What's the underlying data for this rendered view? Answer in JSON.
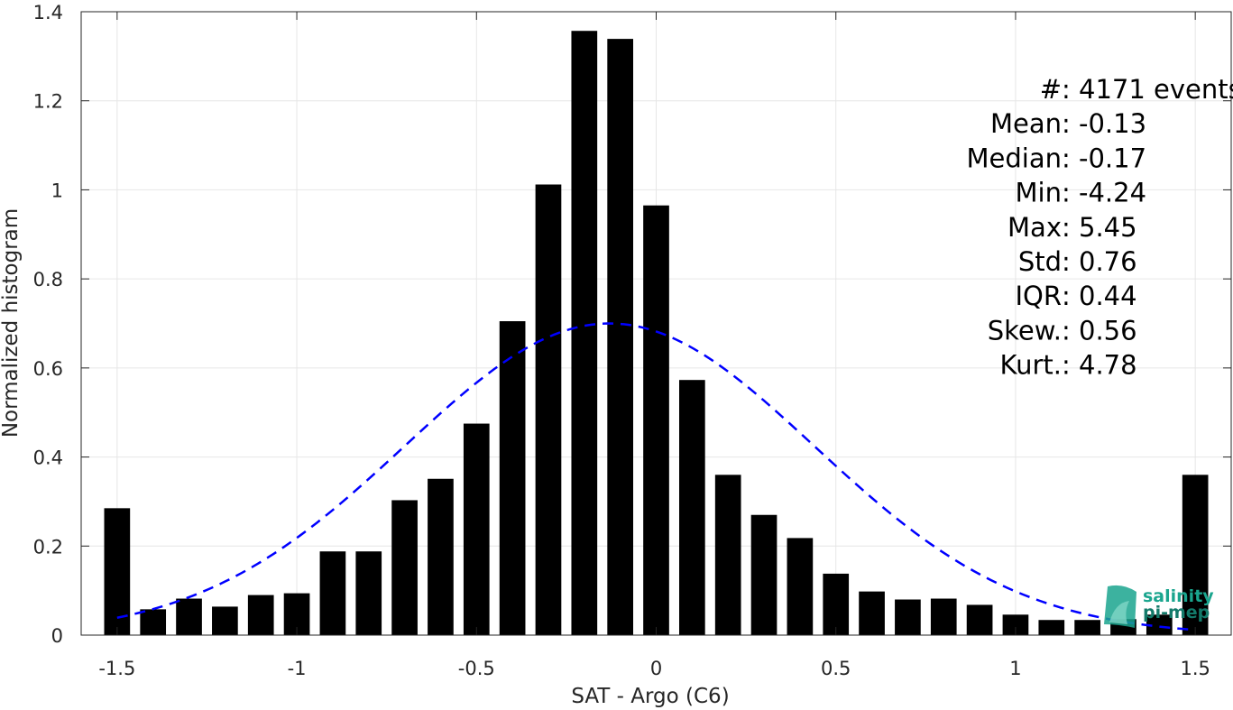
{
  "chart_data": {
    "type": "bar",
    "title": "",
    "xlabel": "SAT - Argo (C6)",
    "ylabel": "Normalized histogram",
    "xlim": [
      -1.6,
      1.6
    ],
    "ylim": [
      0,
      1.4
    ],
    "grid": true,
    "xticks": [
      {
        "value": -1.5,
        "label": "-1.5"
      },
      {
        "value": -1,
        "label": "-1"
      },
      {
        "value": -0.5,
        "label": "-0.5"
      },
      {
        "value": 0,
        "label": "0"
      },
      {
        "value": 0.5,
        "label": "0.5"
      },
      {
        "value": 1,
        "label": "1"
      },
      {
        "value": 1.5,
        "label": "1.5"
      }
    ],
    "yticks": [
      {
        "value": 0,
        "label": "0"
      },
      {
        "value": 0.2,
        "label": "0.2"
      },
      {
        "value": 0.4,
        "label": "0.4"
      },
      {
        "value": 0.6,
        "label": "0.6"
      },
      {
        "value": 0.8,
        "label": "0.8"
      },
      {
        "value": 1,
        "label": "1"
      },
      {
        "value": 1.2,
        "label": "1.2"
      },
      {
        "value": 1.4,
        "label": "1.4"
      }
    ],
    "bar_color": "#000000",
    "bins": {
      "centers": [
        -1.5,
        -1.4,
        -1.3,
        -1.2,
        -1.1,
        -1.0,
        -0.9,
        -0.8,
        -0.7,
        -0.6,
        -0.5,
        -0.4,
        -0.3,
        -0.2,
        -0.1,
        0.0,
        0.1,
        0.2,
        0.3,
        0.4,
        0.5,
        0.6,
        0.7,
        0.8,
        0.9,
        1.0,
        1.1,
        1.2,
        1.3,
        1.4,
        1.5
      ],
      "values": [
        0.285,
        0.058,
        0.082,
        0.064,
        0.09,
        0.094,
        0.188,
        0.188,
        0.303,
        0.351,
        0.475,
        0.705,
        1.012,
        1.357,
        1.339,
        0.965,
        0.573,
        0.36,
        0.27,
        0.218,
        0.138,
        0.098,
        0.08,
        0.082,
        0.068,
        0.046,
        0.034,
        0.034,
        0.036,
        0.046,
        0.36
      ]
    },
    "fit_curve": {
      "type": "normal",
      "style": "dashed",
      "color": "#0000ff",
      "mean": -0.13,
      "std": 0.57,
      "x_range": [
        -1.5,
        1.5
      ]
    },
    "annotations": [
      "#  : 4171 events",
      "Mean : -0.13",
      "Median : -0.17",
      "Min : -4.24",
      "Max : 5.45",
      "Std : 0.76",
      "IQR : 0.44",
      "Skew. : 0.56",
      "Kurt. : 4.78"
    ]
  },
  "logo": {
    "line1": "salinity",
    "line2": "pi-mep",
    "color": "#1aa58e"
  }
}
